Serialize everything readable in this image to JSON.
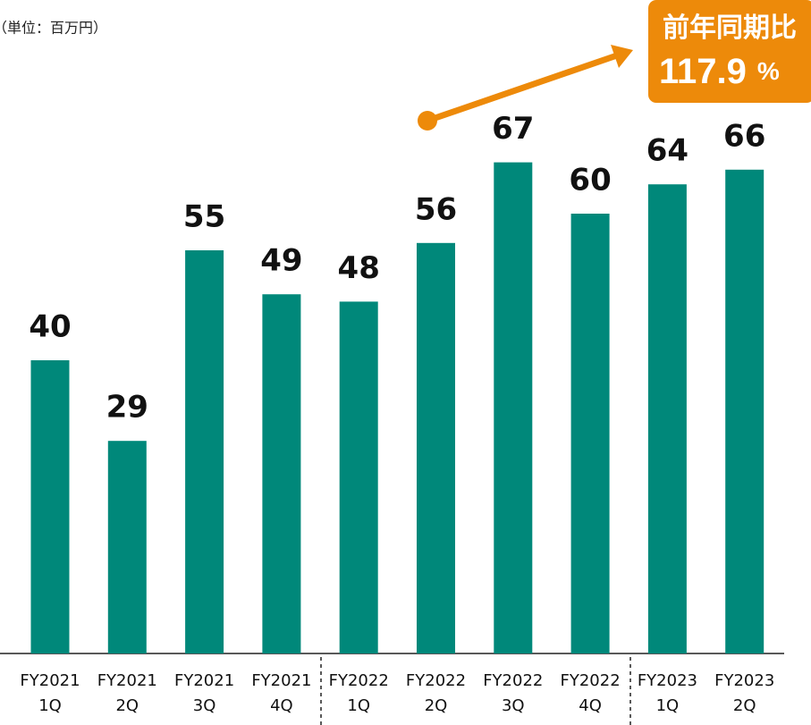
{
  "chart_data": {
    "type": "bar",
    "unit_note": "（単位：百万円）",
    "categories": [
      "FY2021 1Q",
      "FY2021 2Q",
      "FY2021 3Q",
      "FY2021 4Q",
      "FY2022 1Q",
      "FY2022 2Q",
      "FY2022 3Q",
      "FY2022 4Q",
      "FY2023 1Q",
      "FY2023 2Q"
    ],
    "values": [
      40,
      29,
      55,
      49,
      48,
      56,
      67,
      60,
      64,
      66
    ],
    "color": "#00887a",
    "annotation": {
      "title": "前年同期比",
      "value": "117.9",
      "unit": "%",
      "color": "#ed8a0a"
    }
  }
}
